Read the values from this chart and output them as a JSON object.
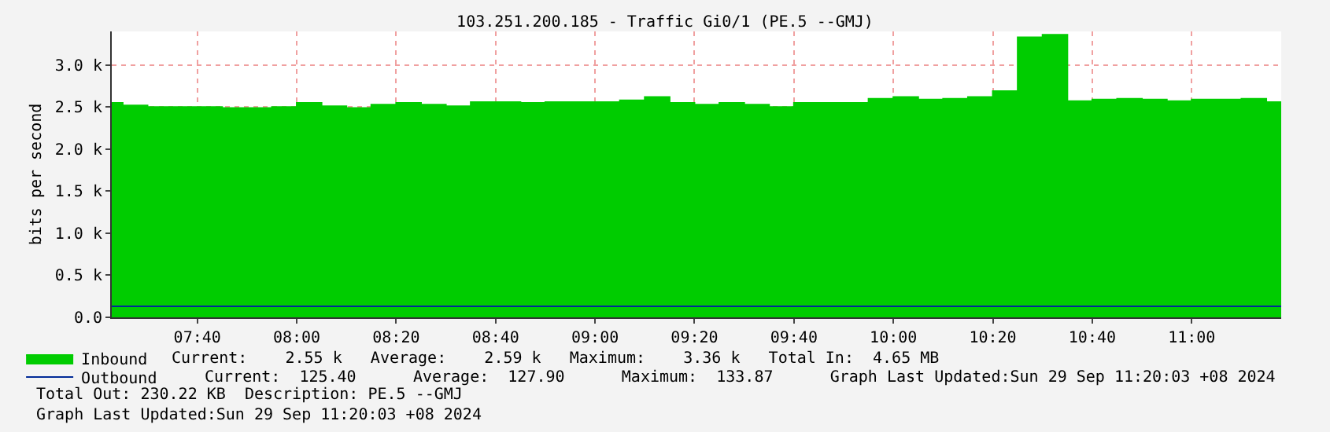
{
  "chart_data": {
    "type": "area",
    "title": "103.251.200.185 - Traffic Gi0/1 (PE.5 --GMJ)",
    "ylabel": "bits per second",
    "series": [
      {
        "name": "Inbound",
        "type": "area",
        "color": "#00cc00",
        "x": [
          7.38,
          7.4167,
          7.4167,
          7.5,
          7.5,
          7.75,
          7.75,
          7.9167,
          7.9167,
          8.0,
          8.0,
          8.0833,
          8.0833,
          8.1667,
          8.1667,
          8.25,
          8.25,
          8.3333,
          8.3333,
          8.4167,
          8.4167,
          8.5,
          8.5,
          8.5833,
          8.5833,
          8.75,
          8.75,
          8.8333,
          8.8333,
          9.0833,
          9.0833,
          9.1667,
          9.1667,
          9.25,
          9.25,
          9.3333,
          9.3333,
          9.4167,
          9.4167,
          9.5,
          9.5,
          9.5833,
          9.5833,
          9.6667,
          9.6667,
          9.9167,
          9.9167,
          10.0,
          10.0,
          10.0833,
          10.0833,
          10.1667,
          10.1667,
          10.25,
          10.25,
          10.3333,
          10.3333,
          10.4167,
          10.4167,
          10.5,
          10.5,
          10.5833,
          10.5833,
          10.6667,
          10.6667,
          10.75,
          10.75,
          10.8333,
          10.8333,
          10.9167,
          10.9167,
          11.0,
          11.0,
          11.1667,
          11.1667,
          11.25,
          11.25,
          11.3
        ],
        "values": [
          2550,
          2550,
          2520,
          2520,
          2500,
          2500,
          2490,
          2490,
          2500,
          2500,
          2550,
          2550,
          2510,
          2510,
          2490,
          2490,
          2530,
          2530,
          2550,
          2550,
          2530,
          2530,
          2510,
          2510,
          2560,
          2560,
          2550,
          2550,
          2560,
          2560,
          2580,
          2580,
          2620,
          2620,
          2550,
          2550,
          2530,
          2530,
          2550,
          2550,
          2530,
          2530,
          2500,
          2500,
          2550,
          2550,
          2600,
          2600,
          2620,
          2620,
          2590,
          2590,
          2600,
          2600,
          2620,
          2620,
          2690,
          2690,
          3330,
          3330,
          3360,
          3360,
          2570,
          2570,
          2590,
          2590,
          2600,
          2600,
          2590,
          2590,
          2570,
          2570,
          2590,
          2590,
          2600,
          2600,
          2560,
          2560
        ]
      },
      {
        "name": "Outbound",
        "type": "line",
        "color": "#002a97",
        "x": [
          7.38,
          11.3
        ],
        "values": [
          130,
          130
        ]
      }
    ],
    "xlim": [
      7.38,
      11.3
    ],
    "xticks": [
      {
        "value": 7.6667,
        "label": "07:40"
      },
      {
        "value": 8.0,
        "label": "08:00"
      },
      {
        "value": 8.3333,
        "label": "08:20"
      },
      {
        "value": 8.6667,
        "label": "08:40"
      },
      {
        "value": 9.0,
        "label": "09:00"
      },
      {
        "value": 9.3333,
        "label": "09:20"
      },
      {
        "value": 9.6667,
        "label": "09:40"
      },
      {
        "value": 10.0,
        "label": "10:00"
      },
      {
        "value": 10.3333,
        "label": "10:20"
      },
      {
        "value": 10.6667,
        "label": "10:40"
      },
      {
        "value": 11.0,
        "label": "11:00"
      }
    ],
    "ylim": [
      0,
      3400
    ],
    "yticks": [
      {
        "value": 0,
        "label": "0.0"
      },
      {
        "value": 500,
        "label": "0.5 k"
      },
      {
        "value": 1000,
        "label": "1.0 k"
      },
      {
        "value": 1500,
        "label": "1.5 k"
      },
      {
        "value": 2000,
        "label": "2.0 k"
      },
      {
        "value": 2500,
        "label": "2.5 k"
      },
      {
        "value": 3000,
        "label": "3.0 k"
      }
    ],
    "grid": true,
    "legend": "bottom left",
    "annotations": [
      "Current:    2.55 k   Average:    2.59 k   Maximum:    3.36 k   Total In:  4.65 MB",
      "Current:  125.40      Average:  127.90      Maximum:  133.87      Graph Last Updated:Sun 29 Sep 11:20:03 +08 2024",
      "Total Out: 230.22 KB  Description: PE.5 --GMJ",
      "Graph Last Updated:Sun 29 Sep 11:20:03 +08 2024"
    ]
  }
}
